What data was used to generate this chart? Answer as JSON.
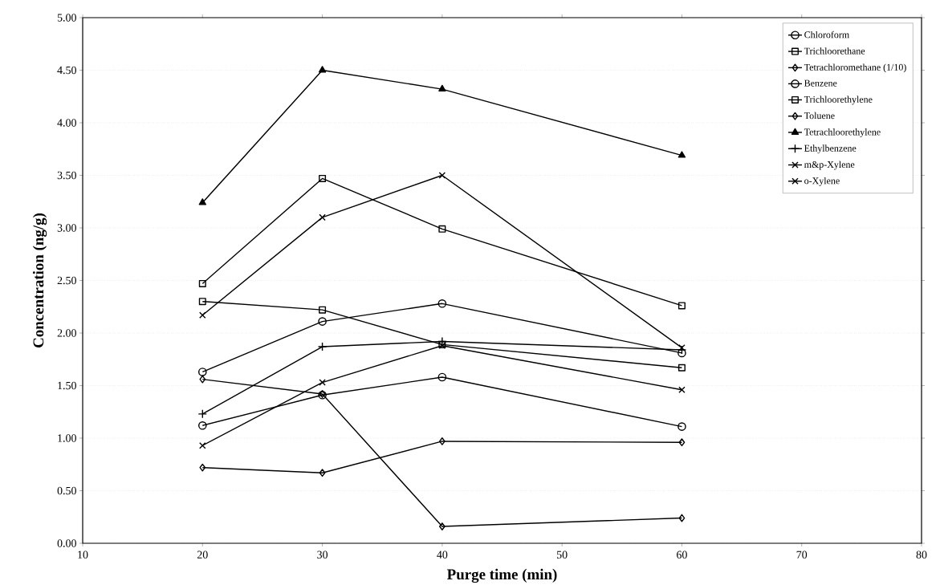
{
  "chart_data": {
    "type": "line",
    "xlabel": "Purge time (min)",
    "ylabel": "Concentration (ng/g)",
    "x": [
      20,
      30,
      40,
      60
    ],
    "xlim": [
      10,
      80
    ],
    "xticks": [
      10,
      20,
      30,
      40,
      50,
      60,
      70,
      80
    ],
    "ylim": [
      0,
      5
    ],
    "yticks": [
      {
        "value": 0,
        "label": "0.00"
      },
      {
        "value": 0.5,
        "label": "0.50"
      },
      {
        "value": 1,
        "label": "1.00"
      },
      {
        "value": 1.5,
        "label": "1.50"
      },
      {
        "value": 2,
        "label": "2.00"
      },
      {
        "value": 2.5,
        "label": "2.50"
      },
      {
        "value": 3,
        "label": "3.00"
      },
      {
        "value": 3.5,
        "label": "3.50"
      },
      {
        "value": 4,
        "label": "4.00"
      },
      {
        "value": 4.5,
        "label": "4.50"
      },
      {
        "value": 5,
        "label": "5.00"
      }
    ],
    "grid": "y",
    "legend": "top right",
    "line_style": "solid",
    "series": [
      {
        "name": "Chloroform",
        "color": "#000000",
        "marker": "circle",
        "values": [
          1.63,
          2.11,
          2.28,
          1.81
        ]
      },
      {
        "name": "Trichloorethane",
        "color": "#000000",
        "marker": "square",
        "values": [
          2.3,
          2.22,
          1.89,
          1.67
        ]
      },
      {
        "name": "Tetrachloromethane (1/10)",
        "color": "#000000",
        "marker": "diamond",
        "values": [
          1.56,
          1.42,
          0.16,
          0.24
        ]
      },
      {
        "name": "Benzene",
        "color": "#000000",
        "marker": "circle",
        "values": [
          1.12,
          1.41,
          1.58,
          1.11
        ]
      },
      {
        "name": "Trichloorethylene",
        "color": "#000000",
        "marker": "square",
        "values": [
          2.47,
          3.47,
          2.99,
          2.26
        ]
      },
      {
        "name": "Toluene",
        "color": "#000000",
        "marker": "diamond",
        "values": [
          0.72,
          0.67,
          0.97,
          0.96
        ]
      },
      {
        "name": "Tetrachloorethylene",
        "color": "#000000",
        "marker": "triangle",
        "values": [
          3.24,
          4.5,
          4.32,
          3.69
        ]
      },
      {
        "name": "Ethylbenzene",
        "color": "#000000",
        "marker": "plus",
        "values": [
          1.23,
          1.87,
          1.92,
          1.84
        ]
      },
      {
        "name": "m&p-Xylene",
        "color": "#000000",
        "marker": "cross",
        "values": [
          2.17,
          3.1,
          3.5,
          1.86
        ]
      },
      {
        "name": "o-Xylene",
        "color": "#000000",
        "marker": "cross",
        "values": [
          0.93,
          1.53,
          1.88,
          1.46
        ]
      }
    ]
  }
}
